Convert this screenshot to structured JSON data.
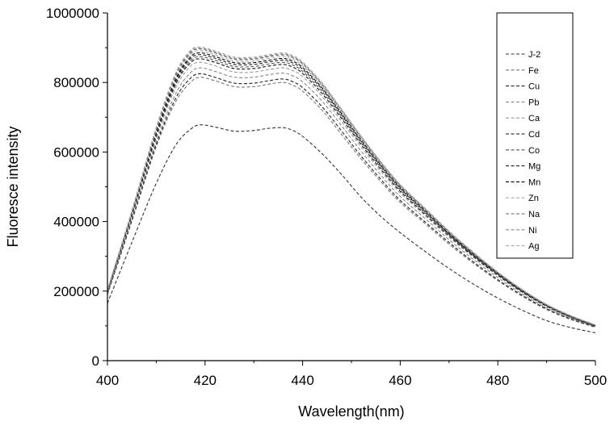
{
  "chart_data": {
    "type": "line",
    "xlabel": "Wavelength(nm)",
    "ylabel": "Fluoresce intensity",
    "xlim": [
      400,
      500
    ],
    "ylim": [
      0,
      1000000
    ],
    "x_ticks": [
      400,
      420,
      440,
      460,
      480,
      500
    ],
    "y_ticks": [
      0,
      200000,
      400000,
      600000,
      800000,
      1000000
    ],
    "x_tick_labels": [
      "400",
      "420",
      "440",
      "460",
      "480",
      "500"
    ],
    "y_tick_labels": [
      "0",
      "200000",
      "400000",
      "600000",
      "800000",
      "1000000"
    ],
    "legend_position": "top-right",
    "x": [
      400,
      405,
      410,
      414,
      417,
      419,
      422,
      426,
      430,
      433,
      436,
      438,
      440,
      444,
      448,
      452,
      456,
      460,
      465,
      470,
      475,
      480,
      485,
      490,
      495,
      500
    ],
    "series": [
      {
        "name": "J-2",
        "color": "#333333",
        "values": [
          165000,
          340000,
          510000,
          620000,
          665000,
          678000,
          672000,
          660000,
          662000,
          668000,
          670000,
          662000,
          645000,
          595000,
          535000,
          470000,
          415000,
          368000,
          315000,
          265000,
          220000,
          180000,
          145000,
          115000,
          95000,
          80000
        ]
      },
      {
        "name": "Fe",
        "color": "#777777",
        "values": [
          190000,
          400000,
          615000,
          745000,
          800000,
          815000,
          805000,
          788000,
          788000,
          795000,
          800000,
          792000,
          775000,
          720000,
          650000,
          580000,
          515000,
          455000,
          395000,
          335000,
          280000,
          230000,
          185000,
          147000,
          118000,
          96000
        ]
      },
      {
        "name": "Cu",
        "color": "#222222",
        "values": [
          192000,
          405000,
          622000,
          755000,
          812000,
          825000,
          815000,
          798000,
          798000,
          805000,
          810000,
          802000,
          785000,
          730000,
          660000,
          588000,
          522000,
          461000,
          400000,
          340000,
          284000,
          233000,
          188000,
          149000,
          120000,
          97000
        ]
      },
      {
        "name": "Pb",
        "color": "#888888",
        "values": [
          194000,
          410000,
          630000,
          768000,
          828000,
          842000,
          832000,
          815000,
          815000,
          822000,
          827000,
          819000,
          802000,
          746000,
          675000,
          602000,
          534000,
          472000,
          410000,
          348000,
          291000,
          239000,
          192000,
          152000,
          122000,
          98000
        ]
      },
      {
        "name": "Ca",
        "color": "#999999",
        "values": [
          196000,
          415000,
          640000,
          785000,
          846000,
          858000,
          848000,
          830000,
          830000,
          837000,
          842000,
          834000,
          817000,
          760000,
          688000,
          614000,
          545000,
          482000,
          418000,
          355000,
          297000,
          244000,
          196000,
          155000,
          124000,
          99000
        ]
      },
      {
        "name": "Cd",
        "color": "#111111",
        "values": [
          197000,
          418000,
          646000,
          795000,
          856000,
          868000,
          858000,
          840000,
          840000,
          847000,
          852000,
          844000,
          826000,
          768000,
          696000,
          621000,
          551000,
          487000,
          422000,
          359000,
          300000,
          246000,
          198000,
          157000,
          125000,
          100000
        ]
      },
      {
        "name": "Co",
        "color": "#555555",
        "values": [
          198000,
          420000,
          650000,
          800000,
          862000,
          874000,
          864000,
          846000,
          846000,
          853000,
          858000,
          850000,
          832000,
          774000,
          701000,
          626000,
          556000,
          491000,
          426000,
          362000,
          302000,
          248000,
          199000,
          158000,
          126000,
          100000
        ]
      },
      {
        "name": "Mg",
        "color": "#222222",
        "values": [
          199000,
          422000,
          654000,
          806000,
          868000,
          880000,
          870000,
          852000,
          852000,
          859000,
          864000,
          856000,
          838000,
          780000,
          706000,
          630000,
          560000,
          495000,
          429000,
          364000,
          304000,
          250000,
          200000,
          159000,
          127000,
          101000
        ]
      },
      {
        "name": "Mn",
        "color": "#000000",
        "values": [
          200000,
          424000,
          658000,
          810000,
          873000,
          885000,
          875000,
          857000,
          857000,
          864000,
          869000,
          861000,
          843000,
          784000,
          710000,
          634000,
          563000,
          498000,
          432000,
          366000,
          306000,
          251000,
          201000,
          160000,
          127000,
          101000
        ]
      },
      {
        "name": "Zn",
        "color": "#aaaaaa",
        "values": [
          201000,
          426000,
          662000,
          815000,
          879000,
          891000,
          880000,
          862000,
          862000,
          869000,
          874000,
          866000,
          848000,
          789000,
          714000,
          638000,
          566000,
          501000,
          434000,
          368000,
          308000,
          252000,
          202000,
          160000,
          128000,
          102000
        ]
      },
      {
        "name": "Na",
        "color": "#666666",
        "values": [
          202000,
          428000,
          666000,
          820000,
          884000,
          896000,
          885000,
          867000,
          867000,
          874000,
          879000,
          871000,
          853000,
          793000,
          718000,
          641000,
          569000,
          503000,
          436000,
          370000,
          309000,
          253000,
          203000,
          161000,
          128000,
          102000
        ]
      },
      {
        "name": "Ni",
        "color": "#888888",
        "values": [
          203000,
          430000,
          669000,
          824000,
          888000,
          899000,
          888000,
          870000,
          870000,
          877000,
          882000,
          874000,
          856000,
          796000,
          721000,
          644000,
          571000,
          505000,
          438000,
          371000,
          310000,
          254000,
          204000,
          161000,
          129000,
          102000
        ]
      },
      {
        "name": "Ag",
        "color": "#aaaaaa",
        "values": [
          204000,
          432000,
          672000,
          828000,
          892000,
          902000,
          891000,
          873000,
          873000,
          880000,
          885000,
          877000,
          859000,
          799000,
          723000,
          646000,
          573000,
          507000,
          440000,
          373000,
          312000,
          255000,
          205000,
          162000,
          129000,
          103000
        ]
      }
    ]
  }
}
